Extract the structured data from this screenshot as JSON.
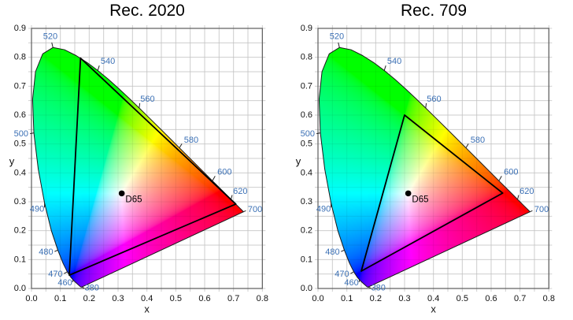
{
  "figure": {
    "description": "Two CIE 1931 xy chromaticity diagrams comparing color gamuts",
    "background": "#ffffff"
  },
  "colors": {
    "wavelength_label": "#3b70b5",
    "axis_text": "#111111",
    "grid_line": "#dcdcdc",
    "frame": "#5c5c5c",
    "gamut_outline": "#000000",
    "locus_outline": "#1a1a1a",
    "white_point_marker": "#000000",
    "title_text": "#000000"
  },
  "chart_data": [
    {
      "type": "area",
      "subtype": "CIE 1931 xy chromaticity diagram",
      "title": "Rec. 2020",
      "xlabel": "x",
      "ylabel": "y",
      "xlim": [
        0.0,
        0.8
      ],
      "ylim": [
        0.0,
        0.9
      ],
      "grid": true,
      "grid_step": 0.05,
      "x_tick_labels": [
        "0.0",
        "0.1",
        "0.2",
        "0.3",
        "0.4",
        "0.5",
        "0.6",
        "0.7",
        "0.8"
      ],
      "y_tick_labels": [
        "0.0",
        "0.1",
        "0.2",
        "0.3",
        "0.4",
        "0.5",
        "0.6",
        "0.7",
        "0.8",
        "0.9"
      ],
      "gamut_triangle": {
        "name": "Rec. 2020",
        "red": [
          0.708,
          0.292
        ],
        "green": [
          0.17,
          0.797
        ],
        "blue": [
          0.131,
          0.046
        ]
      },
      "white_point": {
        "label": "D65",
        "x": 0.3127,
        "y": 0.329
      },
      "wavelength_labels_nm": [
        380,
        460,
        470,
        480,
        490,
        500,
        520,
        540,
        560,
        580,
        600,
        620,
        700
      ]
    },
    {
      "type": "area",
      "subtype": "CIE 1931 xy chromaticity diagram",
      "title": "Rec. 709",
      "xlabel": "x",
      "ylabel": "y",
      "xlim": [
        0.0,
        0.8
      ],
      "ylim": [
        0.0,
        0.9
      ],
      "grid": true,
      "grid_step": 0.05,
      "x_tick_labels": [
        "0.0",
        "0.1",
        "0.2",
        "0.3",
        "0.4",
        "0.5",
        "0.6",
        "0.7",
        "0.8"
      ],
      "y_tick_labels": [
        "0.0",
        "0.1",
        "0.2",
        "0.3",
        "0.4",
        "0.5",
        "0.6",
        "0.7",
        "0.8",
        "0.9"
      ],
      "gamut_triangle": {
        "name": "Rec. 709",
        "red": [
          0.64,
          0.33
        ],
        "green": [
          0.3,
          0.6
        ],
        "blue": [
          0.15,
          0.06
        ]
      },
      "white_point": {
        "label": "D65",
        "x": 0.3127,
        "y": 0.329
      },
      "wavelength_labels_nm": [
        380,
        460,
        470,
        480,
        490,
        500,
        520,
        540,
        560,
        580,
        600,
        620,
        700
      ]
    }
  ],
  "spectral_locus": {
    "description": "CIE 1931 2-degree spectral locus points [nm, x, y] bounding the colored horseshoe",
    "points": [
      [
        380,
        0.1741,
        0.005
      ],
      [
        385,
        0.174,
        0.005
      ],
      [
        390,
        0.1738,
        0.0049
      ],
      [
        395,
        0.1736,
        0.0049
      ],
      [
        400,
        0.1733,
        0.0048
      ],
      [
        405,
        0.173,
        0.0048
      ],
      [
        410,
        0.1726,
        0.0048
      ],
      [
        415,
        0.1721,
        0.0048
      ],
      [
        420,
        0.1714,
        0.0051
      ],
      [
        425,
        0.1703,
        0.0058
      ],
      [
        430,
        0.1689,
        0.0069
      ],
      [
        435,
        0.1669,
        0.0086
      ],
      [
        440,
        0.1644,
        0.0109
      ],
      [
        445,
        0.1611,
        0.0138
      ],
      [
        450,
        0.1566,
        0.0177
      ],
      [
        455,
        0.151,
        0.0227
      ],
      [
        460,
        0.144,
        0.0297
      ],
      [
        465,
        0.1355,
        0.0399
      ],
      [
        470,
        0.1241,
        0.0578
      ],
      [
        475,
        0.1096,
        0.0868
      ],
      [
        480,
        0.0913,
        0.1327
      ],
      [
        485,
        0.0687,
        0.2007
      ],
      [
        490,
        0.0454,
        0.295
      ],
      [
        495,
        0.0235,
        0.4127
      ],
      [
        500,
        0.0082,
        0.5384
      ],
      [
        505,
        0.0039,
        0.6548
      ],
      [
        510,
        0.0139,
        0.7502
      ],
      [
        515,
        0.0389,
        0.812
      ],
      [
        520,
        0.0743,
        0.8338
      ],
      [
        525,
        0.1142,
        0.8262
      ],
      [
        530,
        0.1547,
        0.8059
      ],
      [
        535,
        0.1929,
        0.7816
      ],
      [
        540,
        0.2296,
        0.7543
      ],
      [
        545,
        0.2658,
        0.7243
      ],
      [
        550,
        0.3016,
        0.6923
      ],
      [
        555,
        0.3373,
        0.6589
      ],
      [
        560,
        0.3731,
        0.6245
      ],
      [
        565,
        0.4087,
        0.5896
      ],
      [
        570,
        0.4441,
        0.5547
      ],
      [
        575,
        0.4788,
        0.5202
      ],
      [
        580,
        0.5125,
        0.4866
      ],
      [
        585,
        0.5448,
        0.4544
      ],
      [
        590,
        0.5752,
        0.4242
      ],
      [
        595,
        0.6029,
        0.3965
      ],
      [
        600,
        0.627,
        0.3725
      ],
      [
        605,
        0.6482,
        0.3514
      ],
      [
        610,
        0.6658,
        0.334
      ],
      [
        615,
        0.6801,
        0.3197
      ],
      [
        620,
        0.6915,
        0.3083
      ],
      [
        625,
        0.7006,
        0.2993
      ],
      [
        630,
        0.7079,
        0.292
      ],
      [
        635,
        0.714,
        0.2859
      ],
      [
        640,
        0.719,
        0.2809
      ],
      [
        645,
        0.723,
        0.277
      ],
      [
        650,
        0.726,
        0.274
      ],
      [
        655,
        0.7283,
        0.2717
      ],
      [
        660,
        0.73,
        0.27
      ],
      [
        665,
        0.7311,
        0.2689
      ],
      [
        670,
        0.732,
        0.268
      ],
      [
        675,
        0.7327,
        0.2673
      ],
      [
        680,
        0.7334,
        0.2666
      ],
      [
        685,
        0.734,
        0.266
      ],
      [
        690,
        0.7344,
        0.2656
      ],
      [
        695,
        0.7346,
        0.2654
      ],
      [
        700,
        0.7347,
        0.2653
      ]
    ]
  }
}
